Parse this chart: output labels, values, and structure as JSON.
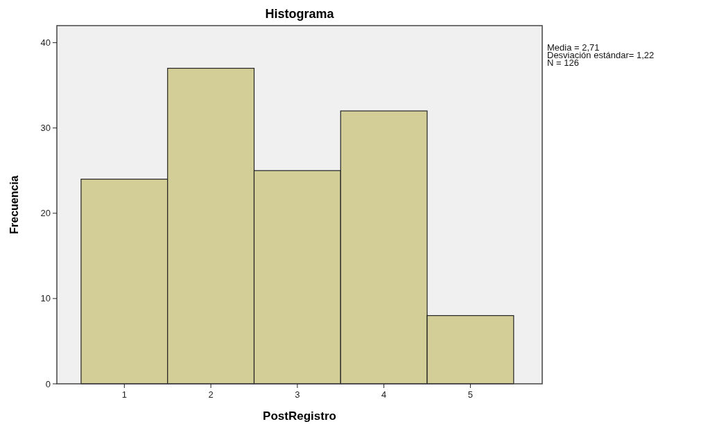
{
  "chart_data": {
    "type": "histogram",
    "title": "Histograma",
    "xlabel": "PostRegistro",
    "ylabel": "Frecuencia",
    "bins": [
      0.5,
      1.5,
      2.5,
      3.5,
      4.5,
      5.5
    ],
    "values": [
      24,
      37,
      25,
      32,
      8
    ],
    "color": "#d3ce97",
    "xlim": [
      0.22,
      5.83
    ],
    "xticks": [
      1,
      2,
      3,
      4,
      5
    ],
    "ylim": [
      0,
      42
    ],
    "yticks": [
      0,
      10,
      20,
      30,
      40
    ],
    "grid": false,
    "annotations": [
      "Media = 2,71",
      "Desviación estándar= 1,22",
      "N = 126"
    ]
  }
}
